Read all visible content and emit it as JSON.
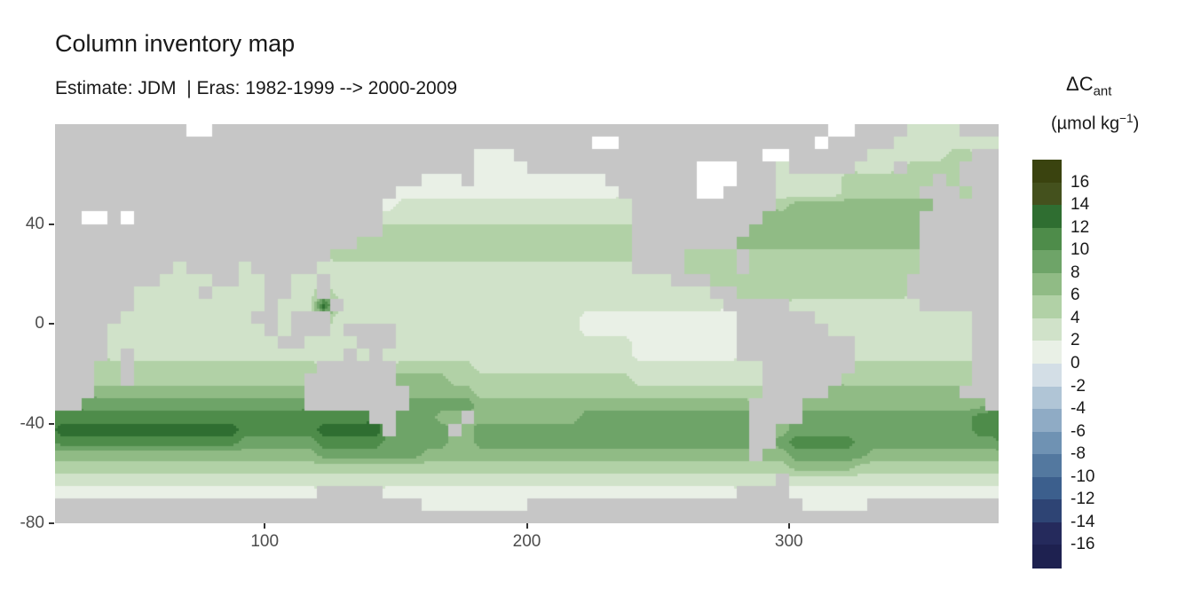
{
  "title": "Column inventory map",
  "subtitle": "Estimate: JDM  | Eras: 1982-1999 --> 2000-2009",
  "legend": {
    "title_main": "ΔC",
    "title_sub": "ant",
    "units_open": "(µmol kg",
    "units_sup": "−1",
    "units_close": ")",
    "labels": [
      "16",
      "14",
      "12",
      "10",
      "8",
      "6",
      "4",
      "2",
      "0",
      "-2",
      "-4",
      "-6",
      "-8",
      "-10",
      "-12",
      "-14",
      "-16"
    ]
  },
  "chart_data": {
    "type": "heatmap",
    "title": "Column inventory map",
    "subtitle": "Estimate: JDM  | Eras: 1982-1999 --> 2000-2009",
    "variable": "ΔCant (µmol kg−1), column inventory change 1982-1999 --> 2000-2009",
    "xlim": [
      20,
      380
    ],
    "ylim": [
      -80,
      80
    ],
    "x_ticks": [
      100,
      200,
      300
    ],
    "y_ticks": [
      40,
      0,
      -40,
      -80
    ],
    "bin_width": 2,
    "value_range": [
      -16,
      16
    ],
    "palette": {
      "land": "#c6c6c6",
      "nodata": "#ffffff",
      "over_cap": "#3a430f",
      "under_cap": "#1e2150",
      "bins": [
        "#252a5c",
        "#2e4474",
        "#3c5f8d",
        "#53789f",
        "#6f92b3",
        "#8fabc5",
        "#b0c5d6",
        "#d3dee6",
        "#e9f0e6",
        "#d0e2c9",
        "#b1d1a6",
        "#90bb85",
        "#6ea468",
        "#4e8c4a",
        "#2f6e31",
        "#44511d"
      ]
    },
    "grid": {
      "cell_deg": 5,
      "lon_start": 20,
      "lat_start": 80,
      "codes": {
        "X": "land",
        "w": "nodata",
        "a": 1,
        "b": 3,
        "c": 5,
        "d": 7,
        "e": 9,
        "f": 11,
        "g": 13,
        "h": 15
      },
      "rows": [
        [
          "XXXXXXXX",
          "XXwwXXXX",
          "XXXXXXXX",
          "XXXXXXXX",
          "XXXXXXXX",
          "XXXXXXXX",
          "XXXXXXXX",
          "XXXwwXXX",
          "XbbbbXXX"
        ],
        [
          "XXXXXXXX",
          "XXXXXXXX",
          "XXXXXXXX",
          "XXXXXXXX",
          "XXXXXXXX",
          "XwwXXXXX",
          "XXXXXXXX",
          "XXwXXXXX",
          "bbbbbbbb"
        ],
        [
          "XXXXXXXX",
          "XXXXXXXX",
          "XXXXXXXX",
          "XXXXXXXX",
          "aaaXXXXX",
          "XXXXXXXX",
          "XXXXXXww",
          "XXXXXXbb",
          "bbbbccXX"
        ],
        [
          "XXXXXXXX",
          "XXXXXXXX",
          "XXXXXXXX",
          "XXXXXXXX",
          "aaaaXXXX",
          "XXXXXXXX",
          "XwwwXXXb",
          "XXXXXbbb",
          "XccccXXX"
        ],
        [
          "XXXXXXXX",
          "XXXXXXXX",
          "XXXXXXXX",
          "XXXXaaaX",
          "aaaaaaaa",
          "aaXXXXXX",
          "XwwwXXXb",
          "bbbbcccc",
          "cccXcXXX"
        ],
        [
          "XXXXXXXX",
          "XXXXXXXX",
          "XXXXXXXX",
          "XXaaaaaa",
          "aaaaaaaa",
          "aaaXXXXX",
          "XwwXXXXb",
          "bbbbcccc",
          "ccXXXcXX"
        ],
        [
          "XXXXXXXX",
          "XXXXXXXX",
          "XXXXXXXX",
          "Xabbbbbb",
          "bbbbbbbb",
          "bbbbXXXX",
          "XXXXXXXc",
          "dddddddd",
          "dddXXXXX"
        ],
        [
          "XXwwXwXX",
          "XXXXXXXX",
          "XXXXXXXX",
          "Xbbbbbbb",
          "bbbbbbbb",
          "bbbbXXXX",
          "XXXXXXdd",
          "dddddddd",
          "ddXXXXXX"
        ],
        [
          "XXXXXXXX",
          "XXXXXXXX",
          "XXXXXXXX",
          "Xccccccc",
          "cccccccc",
          "ccccXXXX",
          "XXXXXddd",
          "dddddddd",
          "ddXXXXXX"
        ],
        [
          "XXXXXXXX",
          "XXXXXXXX",
          "XXXXXXXc",
          "cccccccc",
          "cccccccc",
          "ccccXXXX",
          "XXXXdddd",
          "dddddddd",
          "ddXXXXXX"
        ],
        [
          "XXXXXXXX",
          "XXXXXXXX",
          "XXXXXccc",
          "cccccccc",
          "cccccccc",
          "ccccXXXX",
          "ccccXccc",
          "cccccccc",
          "ccXXXXXX"
        ],
        [
          "XXXXXXXX",
          "XbXXXXbX",
          "XXXXbbbb",
          "bbbbbbbb",
          "bbbbbbbb",
          "bbbbXXXX",
          "ccccXccc",
          "cccccccc",
          "ccXXXXXX"
        ],
        [
          "XXXXXXXX",
          "bbbbXXbb",
          "XXbbXbbb",
          "bbbbbbbb",
          "bbbbbbbb",
          "bbbbbbbX",
          "XXcccccc",
          "cccccccc",
          "cXXXXXXX"
        ],
        [
          "XXXXXXbb",
          "bbbXbbbb",
          "XXbbXbbb",
          "bbbbbbbb",
          "bbbbbbbb",
          "bbbbbbbb",
          "bbXXcccc",
          "cccccccc",
          "cXXXXXXX"
        ],
        [
          "XXXXXXbb",
          "bbbbbbbb",
          "XbbbgXbb",
          "bbbbbbbb",
          "bbbbbbbb",
          "bbbbbbbb",
          "bbbXXXXX",
          "bbbbbbbb",
          "bbXXXXXX"
        ],
        [
          "XXXXXbbb",
          "bbbbbbbX",
          "XbXXXbbb",
          "bbbbbbbb",
          "bbbbbbbb",
          "aaaaaaaa",
          "aaaaXXXX",
          "XXbbbbbb",
          "bbbbbbXX"
        ],
        [
          "XXXXbbbb",
          "bbbbbbbb",
          "XbXXXbXX",
          "XXbbbbbb",
          "bbbbbbbb",
          "aaaaaaaa",
          "aaaaXXXX",
          "XXXbbbbb",
          "bbbbbbXX"
        ],
        [
          "XXXXbbbb",
          "bbbbbbbb",
          "bXXbbbbX",
          "XXbbbbbb",
          "bbbbbbbb",
          "bbbbaaaa",
          "aaaaXXXX",
          "XXXXXbbb",
          "bbbbbbXX"
        ],
        [
          "XXXXbXbb",
          "bbbbbbbb",
          "bbbbbbXb",
          "Xbbbbbbb",
          "bbbbbbbb",
          "bbbbaaaa",
          "aaaaXXXX",
          "XXXXXbbb",
          "bbbbbbXX"
        ],
        [
          "XXXccXcc",
          "cccccccc",
          "ccccXXXX",
          "XXcccccc",
          "bbbbbbbb",
          "bbbbbbbb",
          "bbbbbbXX",
          "XXXXXccc",
          "ccccccXX"
        ],
        [
          "XXXccXcc",
          "cccccccc",
          "cccXXXXX",
          "XXddddcc",
          "cccccccc",
          "ccccbbbb",
          "bbbbbbXX",
          "XXXXcccc",
          "ccccccXX"
        ],
        [
          "XXXddddd",
          "dddddddd",
          "dddXXXXX",
          "XXXddddd",
          "cccccccc",
          "cccccccc",
          "ccccccXX",
          "XXXddddd",
          "dddddXXX"
        ],
        [
          "XXeeeeee",
          "eeeeeeee",
          "eeeXXXXX",
          "XXXeeeee",
          "dddddddd",
          "dddddddd",
          "dddddXXX",
          "Xddddddd",
          "dddddddX"
        ],
        [
          "ffffffff",
          "ffffffff",
          "ffffffff",
          "XXeeeddX",
          "dddddddd",
          "eeeeeeee",
          "eeeeeXXX",
          "Xeeeeeee",
          "eeeeeeff"
        ],
        [
          "gggggggg",
          "ggggggff",
          "ffffgggg",
          "gXeeeeXd",
          "eeeeeeee",
          "eeeeeeee",
          "eeeeeXXd",
          "eeeeeeee",
          "eeeeeeff"
        ],
        [
          "ffffffff",
          "ffffffee",
          "eeeeffff",
          "feeeeedd",
          "eeeeeeee",
          "eeeeeeee",
          "eeeeeXXe",
          "fffffeee",
          "eeeeeeee"
        ],
        [
          "dddddddd",
          "dddddddd",
          "ddddeeee",
          "eeeedddd",
          "dddddddd",
          "dddddddd",
          "dddddXdd",
          "eeeeeedd",
          "dddddddd"
        ],
        [
          "cccccccc",
          "cccccccc",
          "cccccccc",
          "cccccccc",
          "cccccccc",
          "cccccccc",
          "cccccccc",
          "dddddccc",
          "cccccccc"
        ],
        [
          "bbbbbbbb",
          "bbbbbbbb",
          "bbbbbbbb",
          "bbbbbbbb",
          "bbbbbbbb",
          "bbbbbbbb",
          "bbbbbbbX",
          "bbbbbbbb",
          "bbbbbbbb"
        ],
        [
          "aaaaaaaa",
          "aaaaaaaa",
          "aaaaXXXX",
          "Xaaaaaaa",
          "aaaaaaaa",
          "aaaaaaaa",
          "aaaaXXXX",
          "aaaaaaaa",
          "aaaaaaaa"
        ],
        [
          "XXXXXXXX",
          "XXXXXXXX",
          "XXXXXXXX",
          "XXXXaaaa",
          "aaaaXXXX",
          "XXXXXXXX",
          "XXXXXXXX",
          "XaaaaaXX",
          "XXXXXXXX"
        ],
        [
          "XXXXXXXX",
          "XXXXXXXX",
          "XXXXXXXX",
          "XXXXXXXX",
          "XXXXXXXX",
          "XXXXXXXX",
          "XXXXXXXX",
          "XXXXXXXX",
          "XXXXXXXX"
        ]
      ]
    }
  }
}
